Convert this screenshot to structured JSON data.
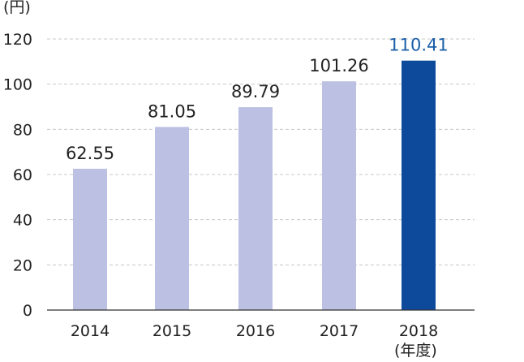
{
  "chart_data": {
    "type": "bar",
    "categories": [
      "2014",
      "2015",
      "2016",
      "2017",
      "2018"
    ],
    "values": [
      62.55,
      81.05,
      89.79,
      101.26,
      110.41
    ],
    "value_labels": [
      "62.55",
      "81.05",
      "89.79",
      "101.26",
      "110.41"
    ],
    "yticks": [
      "0",
      "20",
      "40",
      "60",
      "80",
      "100",
      "120"
    ],
    "ylim": [
      0,
      120
    ],
    "y_unit": "(円)",
    "x_unit": "(年度)",
    "grid": true,
    "colors": {
      "bar": "#bcc0e2",
      "highlight_bar": "#0d4a9c",
      "highlight_label": "#1b5fa8",
      "text": "#222222",
      "grid": "#c8c8c8",
      "axis": "#333333"
    },
    "highlight_index": 4
  }
}
